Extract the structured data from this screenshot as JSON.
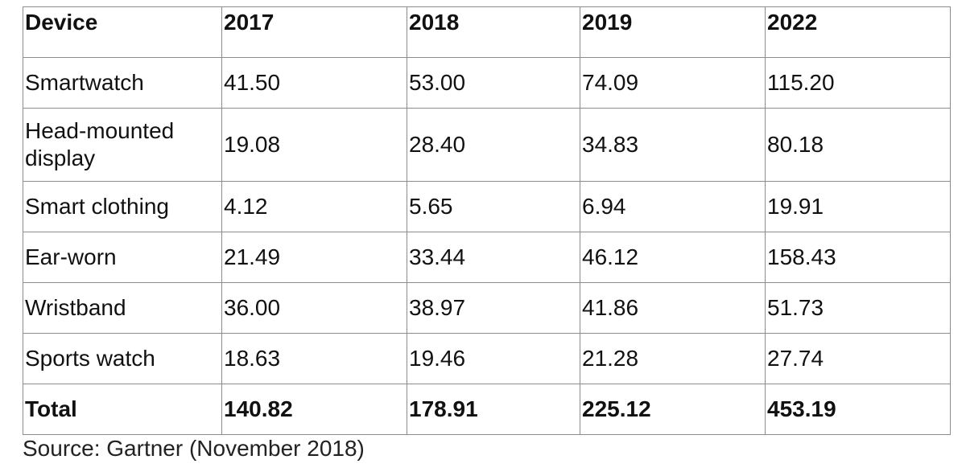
{
  "table": {
    "headers": [
      "Device",
      "2017",
      "2018",
      "2019",
      "2022"
    ],
    "rows": [
      {
        "device": "Smartwatch",
        "values": [
          "41.50",
          "53.00",
          "74.09",
          "115.20"
        ]
      },
      {
        "device": "Head-mounted display",
        "values": [
          "19.08",
          "28.40",
          "34.83",
          "80.18"
        ]
      },
      {
        "device": "Smart clothing",
        "values": [
          "4.12",
          "5.65",
          "6.94",
          "19.91"
        ]
      },
      {
        "device": "Ear-worn",
        "values": [
          "21.49",
          "33.44",
          "46.12",
          "158.43"
        ]
      },
      {
        "device": "Wristband",
        "values": [
          "36.00",
          "38.97",
          "41.86",
          "51.73"
        ]
      },
      {
        "device": "Sports watch",
        "values": [
          "18.63",
          "19.46",
          "21.28",
          "27.74"
        ]
      }
    ],
    "total": {
      "label": "Total",
      "values": [
        "140.82",
        "178.91",
        "225.12",
        "453.19"
      ]
    }
  },
  "source": "Source: Gartner (November 2018)"
}
